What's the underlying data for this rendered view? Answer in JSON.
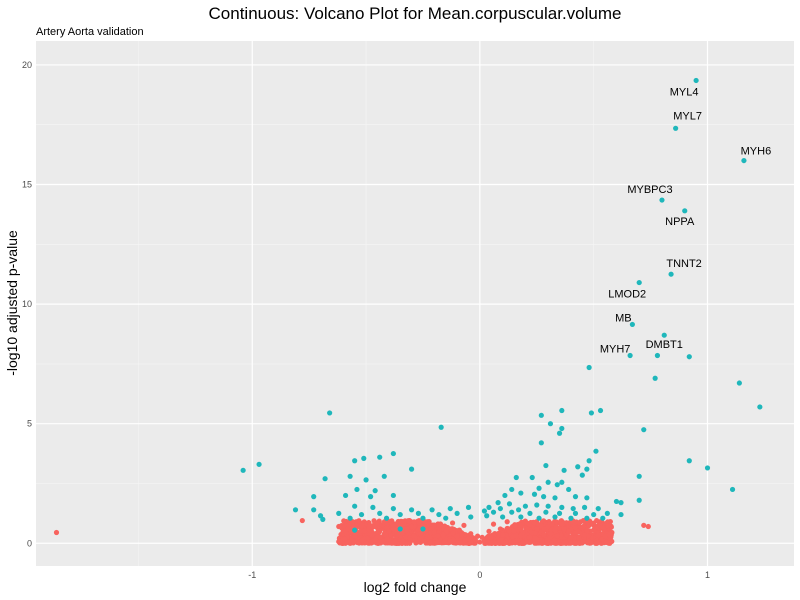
{
  "chart_data": {
    "type": "scatter",
    "title": "Continuous: Volcano Plot for Mean.corpuscular.volume",
    "subtitle": "Artery Aorta validation",
    "xlabel": "log2 fold change",
    "ylabel": "-log10 adjusted p-value",
    "xlim": [
      -1.95,
      1.38
    ],
    "ylim": [
      -0.95,
      21.0
    ],
    "x_ticks": [
      {
        "value": -1,
        "label": "-1"
      },
      {
        "value": 0,
        "label": "0"
      },
      {
        "value": 1,
        "label": "1"
      }
    ],
    "y_ticks": [
      {
        "value": 0,
        "label": "0"
      },
      {
        "value": 5,
        "label": "5"
      },
      {
        "value": 10,
        "label": "10"
      },
      {
        "value": 15,
        "label": "15"
      },
      {
        "value": 20,
        "label": "20"
      }
    ],
    "grid": true,
    "colors": {
      "significant": "#1fb7bb",
      "not_significant": "#f8635e",
      "panel": "#ebebeb",
      "grid": "#ffffff"
    },
    "labels": [
      {
        "text": "MYL4",
        "x": 0.95,
        "y": 19.35
      },
      {
        "text": "MYL7",
        "x": 0.86,
        "y": 17.35
      },
      {
        "text": "MYH6",
        "x": 1.16,
        "y": 16.0
      },
      {
        "text": "MYBPC3",
        "x": 0.8,
        "y": 14.35
      },
      {
        "text": "NPPA",
        "x": 0.9,
        "y": 13.9
      },
      {
        "text": "TNNT2",
        "x": 0.84,
        "y": 11.25
      },
      {
        "text": "LMOD2",
        "x": 0.7,
        "y": 10.9
      },
      {
        "text": "MB",
        "x": 0.67,
        "y": 9.15
      },
      {
        "text": "DMBT1",
        "x": 0.81,
        "y": 8.7
      },
      {
        "text": "MYH7",
        "x": 0.66,
        "y": 7.85
      }
    ],
    "series": [
      {
        "color": "#1fb7bb",
        "points": [
          [
            0.95,
            19.35
          ],
          [
            0.86,
            17.35
          ],
          [
            1.16,
            16.0
          ],
          [
            0.8,
            14.35
          ],
          [
            0.9,
            13.9
          ],
          [
            0.84,
            11.25
          ],
          [
            0.7,
            10.9
          ],
          [
            0.67,
            9.15
          ],
          [
            0.81,
            8.7
          ],
          [
            0.66,
            7.85
          ],
          [
            0.78,
            7.85
          ],
          [
            0.92,
            7.8
          ],
          [
            0.48,
            7.35
          ],
          [
            0.77,
            6.9
          ],
          [
            1.14,
            6.7
          ],
          [
            1.23,
            5.7
          ],
          [
            -0.66,
            5.45
          ],
          [
            0.36,
            5.55
          ],
          [
            0.53,
            5.55
          ],
          [
            0.49,
            5.45
          ],
          [
            0.27,
            5.35
          ],
          [
            0.31,
            5.0
          ],
          [
            0.36,
            4.8
          ],
          [
            0.72,
            4.75
          ],
          [
            -0.17,
            4.85
          ],
          [
            0.35,
            4.6
          ],
          [
            0.27,
            4.2
          ],
          [
            -0.38,
            3.75
          ],
          [
            0.51,
            3.85
          ],
          [
            -0.44,
            3.6
          ],
          [
            -0.51,
            3.55
          ],
          [
            -0.55,
            3.45
          ],
          [
            -0.97,
            3.3
          ],
          [
            -1.04,
            3.05
          ],
          [
            -0.3,
            3.1
          ],
          [
            0.92,
            3.45
          ],
          [
            1.0,
            3.15
          ],
          [
            0.48,
            3.45
          ],
          [
            0.29,
            3.25
          ],
          [
            0.43,
            3.2
          ],
          [
            0.47,
            3.1
          ],
          [
            0.37,
            3.05
          ],
          [
            0.45,
            2.85
          ],
          [
            -0.68,
            2.7
          ],
          [
            -0.57,
            2.8
          ],
          [
            -0.42,
            2.8
          ],
          [
            -0.5,
            2.65
          ],
          [
            0.7,
            2.8
          ],
          [
            0.16,
            2.75
          ],
          [
            0.23,
            2.75
          ],
          [
            0.3,
            2.55
          ],
          [
            0.36,
            2.55
          ],
          [
            -0.54,
            2.25
          ],
          [
            -0.46,
            2.2
          ],
          [
            0.14,
            2.25
          ],
          [
            0.26,
            2.3
          ],
          [
            0.34,
            2.45
          ],
          [
            0.39,
            2.25
          ],
          [
            1.11,
            2.25
          ],
          [
            -0.73,
            1.95
          ],
          [
            -0.59,
            2.0
          ],
          [
            -0.48,
            1.95
          ],
          [
            -0.38,
            2.0
          ],
          [
            0.11,
            2.0
          ],
          [
            0.18,
            2.1
          ],
          [
            0.24,
            2.05
          ],
          [
            0.28,
            1.95
          ],
          [
            0.33,
            1.9
          ],
          [
            0.42,
            1.95
          ],
          [
            0.47,
            1.9
          ],
          [
            0.6,
            1.75
          ],
          [
            0.62,
            1.7
          ],
          [
            0.7,
            1.8
          ],
          [
            -0.81,
            1.4
          ],
          [
            -0.73,
            1.4
          ],
          [
            -0.55,
            1.55
          ],
          [
            -0.47,
            1.5
          ],
          [
            -0.38,
            1.45
          ],
          [
            -0.3,
            1.4
          ],
          [
            -0.21,
            1.4
          ],
          [
            -0.13,
            1.45
          ],
          [
            -0.05,
            1.5
          ],
          [
            0.04,
            1.5
          ],
          [
            0.08,
            1.7
          ],
          [
            0.13,
            1.65
          ],
          [
            0.2,
            1.55
          ],
          [
            0.25,
            1.6
          ],
          [
            0.3,
            1.55
          ],
          [
            0.36,
            1.5
          ],
          [
            0.41,
            1.45
          ],
          [
            0.46,
            1.5
          ],
          [
            0.52,
            1.45
          ],
          [
            -0.7,
            1.15
          ],
          [
            -0.62,
            1.25
          ],
          [
            -0.52,
            1.2
          ],
          [
            -0.44,
            1.25
          ],
          [
            -0.35,
            1.2
          ],
          [
            -0.27,
            1.25
          ],
          [
            -0.18,
            1.2
          ],
          [
            -0.1,
            1.25
          ],
          [
            0.06,
            1.3
          ],
          [
            0.14,
            1.3
          ],
          [
            0.22,
            1.25
          ],
          [
            0.29,
            1.3
          ],
          [
            0.35,
            1.25
          ],
          [
            0.42,
            1.25
          ],
          [
            0.5,
            1.2
          ],
          [
            0.56,
            1.25
          ],
          [
            0.62,
            1.2
          ],
          [
            -0.69,
            1.0
          ],
          [
            -0.57,
            1.05
          ],
          [
            -0.41,
            1.05
          ],
          [
            -0.25,
            1.05
          ],
          [
            -0.15,
            1.05
          ],
          [
            -0.04,
            1.1
          ],
          [
            0.03,
            1.15
          ],
          [
            0.1,
            1.1
          ],
          [
            0.18,
            1.1
          ],
          [
            0.26,
            1.05
          ],
          [
            0.33,
            1.1
          ],
          [
            0.4,
            1.05
          ],
          [
            0.47,
            1.05
          ],
          [
            0.54,
            1.05
          ],
          [
            -0.55,
            0.55
          ],
          [
            -0.35,
            0.6
          ],
          [
            -0.25,
            0.6
          ],
          [
            0.02,
            1.35
          ],
          [
            0.09,
            1.45
          ],
          [
            0.17,
            1.4
          ]
        ]
      },
      {
        "color": "#f8635e",
        "points": [
          [
            -1.86,
            0.45
          ],
          [
            -0.78,
            0.95
          ],
          [
            0.72,
            0.75
          ],
          [
            0.74,
            0.7
          ],
          [
            0.52,
            0.35
          ],
          [
            0.54,
            0.4
          ],
          [
            0.55,
            0.3
          ],
          [
            0.58,
            0.45
          ],
          [
            0.57,
            0.35
          ],
          [
            -0.62,
            0.7
          ],
          [
            -0.58,
            0.6
          ],
          [
            -0.52,
            0.75
          ],
          [
            -0.48,
            0.5
          ],
          [
            -0.45,
            0.85
          ],
          [
            -0.41,
            0.65
          ],
          [
            -0.37,
            0.8
          ],
          [
            -0.34,
            0.45
          ],
          [
            -0.3,
            0.7
          ],
          [
            -0.27,
            0.55
          ],
          [
            -0.24,
            0.9
          ],
          [
            -0.21,
            0.6
          ],
          [
            -0.18,
            0.75
          ],
          [
            -0.15,
            0.45
          ],
          [
            -0.12,
            0.85
          ],
          [
            -0.09,
            0.55
          ],
          [
            -0.07,
            0.75
          ],
          [
            -0.04,
            0.4
          ],
          [
            0.04,
            0.5
          ],
          [
            0.06,
            0.8
          ],
          [
            0.09,
            0.6
          ],
          [
            0.12,
            0.9
          ],
          [
            0.15,
            0.5
          ],
          [
            0.18,
            0.75
          ],
          [
            0.21,
            0.6
          ],
          [
            0.24,
            0.85
          ],
          [
            0.27,
            0.45
          ],
          [
            0.3,
            0.7
          ],
          [
            0.33,
            0.55
          ],
          [
            0.36,
            0.8
          ],
          [
            0.39,
            0.5
          ],
          [
            0.42,
            0.65
          ],
          [
            0.45,
            0.4
          ],
          [
            0.48,
            0.75
          ],
          [
            0.5,
            0.55
          ],
          [
            -0.55,
            0.3
          ],
          [
            -0.44,
            0.25
          ],
          [
            -0.36,
            0.35
          ],
          [
            -0.29,
            0.3
          ],
          [
            -0.22,
            0.25
          ],
          [
            -0.16,
            0.35
          ],
          [
            -0.1,
            0.3
          ],
          [
            -0.05,
            0.2
          ],
          [
            0.05,
            0.25
          ],
          [
            0.1,
            0.35
          ],
          [
            0.16,
            0.3
          ],
          [
            0.22,
            0.25
          ],
          [
            0.28,
            0.35
          ],
          [
            0.34,
            0.3
          ],
          [
            0.4,
            0.25
          ],
          [
            0.46,
            0.35
          ],
          [
            -0.4,
            0.5
          ],
          [
            -0.32,
            0.6
          ],
          [
            -0.26,
            0.4
          ],
          [
            -0.2,
            0.45
          ],
          [
            -0.13,
            0.6
          ],
          [
            -0.08,
            0.35
          ],
          [
            0.08,
            0.4
          ],
          [
            0.13,
            0.6
          ],
          [
            0.19,
            0.45
          ],
          [
            0.25,
            0.6
          ],
          [
            0.31,
            0.4
          ],
          [
            0.37,
            0.6
          ],
          [
            0.43,
            0.5
          ],
          [
            -0.02,
            0.15
          ],
          [
            0.02,
            0.1
          ],
          [
            0.0,
            0.05
          ],
          [
            -0.01,
            0.3
          ],
          [
            0.01,
            0.25
          ]
        ],
        "cloud_right": {
          "x_min": 0.02,
          "x_max": 0.58,
          "y_max": 0.95,
          "count": 850
        },
        "cloud_left": {
          "x_min": -0.02,
          "x_max": -0.62,
          "y_max": 0.95,
          "count": 850
        }
      }
    ]
  }
}
